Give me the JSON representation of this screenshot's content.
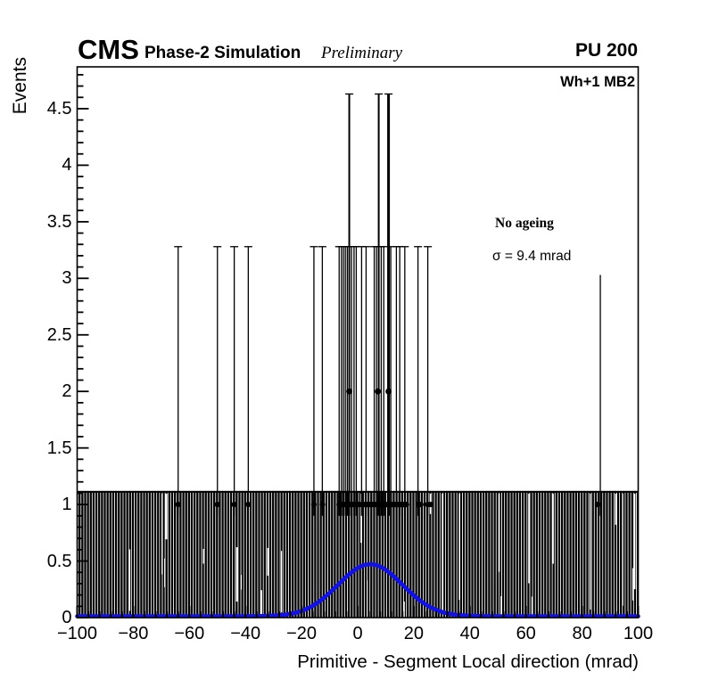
{
  "header": {
    "experiment": "CMS",
    "label": "Phase-2 Simulation",
    "sublabel": "Preliminary",
    "pileup": "PU 200"
  },
  "plot": {
    "region_label": "Wh+1 MB2",
    "annotation_title": "No ageing",
    "annotation_value": "σ = 9.4 mrad"
  },
  "colors": {
    "foreground": "#000000",
    "background": "#ffffff",
    "fit_blue": "#1212e8"
  },
  "chart_data": {
    "type": "bar",
    "subtype": "root-histogram-with-error-bars",
    "title": "",
    "xlabel": "Primitive - Segment Local direction (mrad)",
    "ylabel": "Events",
    "x_range": [
      -100,
      100
    ],
    "y_range": [
      0,
      4.87
    ],
    "grid": false,
    "x_major_ticks": [
      {
        "v": -100,
        "label": "−100"
      },
      {
        "v": -80,
        "label": "−80"
      },
      {
        "v": -60,
        "label": "−60"
      },
      {
        "v": -40,
        "label": "−40"
      },
      {
        "v": -20,
        "label": "−20"
      },
      {
        "v": 0,
        "label": "0"
      },
      {
        "v": 20,
        "label": "20"
      },
      {
        "v": 40,
        "label": "40"
      },
      {
        "v": 60,
        "label": "60"
      },
      {
        "v": 80,
        "label": "80"
      },
      {
        "v": 100,
        "label": "100"
      }
    ],
    "y_major_ticks": [
      {
        "v": 0,
        "label": "0"
      },
      {
        "v": 0.5,
        "label": "0.5"
      },
      {
        "v": 1,
        "label": "1"
      },
      {
        "v": 1.5,
        "label": "1.5"
      },
      {
        "v": 2,
        "label": "2"
      },
      {
        "v": 2.5,
        "label": "2.5"
      },
      {
        "v": 3,
        "label": "3"
      },
      {
        "v": 3.5,
        "label": "3.5"
      },
      {
        "v": 4,
        "label": "4"
      },
      {
        "v": 4.5,
        "label": "4.5"
      }
    ],
    "x_minor_step": 4,
    "y_minor_step": 0.1,
    "uniform_band": {
      "x_min": -100,
      "x_max": 100,
      "top": 1.12,
      "bin_width_mrad": 1
    },
    "error_spikes": [
      {
        "x": -64,
        "top": 3.28
      },
      {
        "x": -50,
        "top": 3.28
      },
      {
        "x": -44,
        "top": 3.28
      },
      {
        "x": -39,
        "top": 3.28
      },
      {
        "x": -15.6,
        "top": 3.28
      },
      {
        "x": -12.6,
        "top": 3.28
      },
      {
        "x": -6.6,
        "top": 3.28
      },
      {
        "x": -5.8,
        "top": 3.28
      },
      {
        "x": -5.1,
        "top": 3.28
      },
      {
        "x": -4.4,
        "top": 3.28
      },
      {
        "x": -3.7,
        "top": 3.28
      },
      {
        "x": -3,
        "top": 4.63,
        "w": 2
      },
      {
        "x": -2.2,
        "top": 3.28
      },
      {
        "x": -1.3,
        "top": 3.28
      },
      {
        "x": -0.5,
        "top": 3.28
      },
      {
        "x": 1.4,
        "top": 3.28
      },
      {
        "x": 3,
        "top": 3.28
      },
      {
        "x": 5.9,
        "top": 3.28
      },
      {
        "x": 6.7,
        "top": 3.28
      },
      {
        "x": 7.5,
        "top": 4.63,
        "w": 2
      },
      {
        "x": 8.4,
        "top": 3.28
      },
      {
        "x": 9.3,
        "top": 3.28
      },
      {
        "x": 11,
        "top": 4.63,
        "w": 3
      },
      {
        "x": 11.8,
        "top": 3.28
      },
      {
        "x": 13.8,
        "top": 3.28
      },
      {
        "x": 15,
        "top": 3.28
      },
      {
        "x": 16.8,
        "top": 3.28
      },
      {
        "x": 21.5,
        "top": 3.28
      },
      {
        "x": 25,
        "top": 3.28
      },
      {
        "x": 86.5,
        "top": 3.03,
        "cap": false
      }
    ],
    "markers_y2": [
      -3,
      7.2,
      11
    ],
    "markers_y1": [
      -64,
      -50,
      -44,
      -39,
      -15.6,
      -12.6,
      -6.6,
      -5.6,
      -4.6,
      -3.6,
      -2.6,
      -1.6,
      -0.6,
      0.4,
      1.4,
      2.4,
      3.4,
      4.4,
      5.4,
      6.4,
      7.4,
      8.4,
      9.4,
      10.4,
      11.4,
      12.4,
      13.4,
      14.4,
      15.4,
      16.4,
      17.4,
      21.5,
      22.5,
      25,
      26,
      85.5
    ],
    "fit": {
      "shape": "gaussian",
      "mean_mrad": 4.5,
      "sigma_mrad": 9.4,
      "amplitude_events": 0.46,
      "baseline_events": 0.012,
      "legend_sigma_text": "σ = 9.4 mrad"
    }
  }
}
